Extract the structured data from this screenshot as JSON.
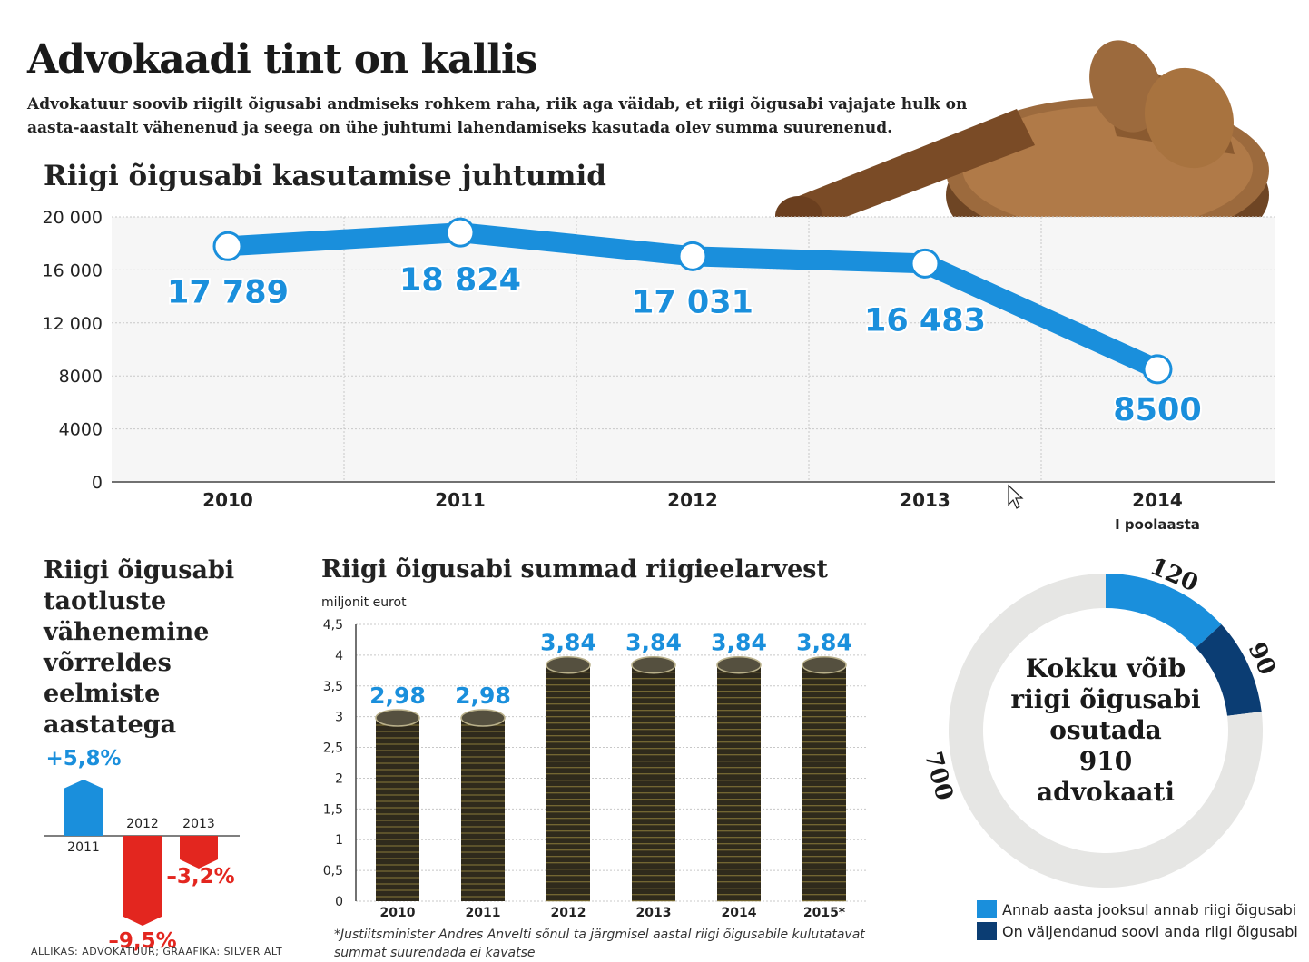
{
  "header": {
    "title": "Advokaadi tint on kallis",
    "subtitle": "Advokatuur soovib riigilt õigusabi andmiseks rohkem raha, riik aga väidab, et riigi õigusabi vajajate hulk on aasta-aastalt vähenenud ja seega on ühe juhtumi lahendamiseks kasutada olev summa suurenenud."
  },
  "colors": {
    "accent_blue": "#1a8fdc",
    "dark_blue": "#0b3d73",
    "red": "#e3261f",
    "grid": "#c8c8c8",
    "donut_gray": "#e6e6e4"
  },
  "chart_data": [
    {
      "type": "line",
      "title": "Riigi õigusabi kasutamise juhtumid",
      "categories": [
        "2010",
        "2011",
        "2012",
        "2013",
        "2014"
      ],
      "category_sublabels": [
        "",
        "",
        "",
        "",
        "I poolaasta"
      ],
      "series": [
        {
          "values": [
            17789,
            18824,
            17031,
            16483,
            8500
          ]
        }
      ],
      "data_labels": [
        "17 789",
        "18 824",
        "17 031",
        "16 483",
        "8500"
      ],
      "yticks": [
        "0",
        "4000",
        "8000",
        "12 000",
        "16 000",
        "20 000"
      ],
      "ylim": [
        0,
        20000
      ],
      "grid": true
    },
    {
      "type": "bar",
      "title": "Riigi õigusabi taotluste vähenemine võrreldes eelmiste aastatega",
      "categories": [
        "2011",
        "2012",
        "2013"
      ],
      "values": [
        5.8,
        -9.5,
        -3.2
      ],
      "data_labels": [
        "+5,8%",
        "–9,5%",
        "–3,2%"
      ]
    },
    {
      "type": "bar",
      "title": "Riigi õigusabi summad riigieelarvest",
      "unit": "miljonit eurot",
      "categories": [
        "2010",
        "2011",
        "2012",
        "2013",
        "2014",
        "2015*"
      ],
      "values": [
        2.98,
        2.98,
        3.84,
        3.84,
        3.84,
        3.84
      ],
      "data_labels": [
        "2,98",
        "2,98",
        "3,84",
        "3,84",
        "3,84",
        "3,84"
      ],
      "yticks": [
        "0",
        "0,5",
        "1",
        "1,5",
        "2",
        "2,5",
        "3",
        "3,5",
        "4",
        "4,5"
      ],
      "ylim": [
        0,
        4.5
      ],
      "grid": true
    },
    {
      "type": "pie",
      "labels": [
        "Annab aasta jooksul annab riigi õigusabi",
        "On väljendanud soovi anda riigi õigusabi",
        ""
      ],
      "values": [
        120,
        90,
        700
      ],
      "value_labels": [
        "120",
        "90",
        "700"
      ]
    }
  ],
  "donut_center": [
    "Kokku võib",
    "riigi õigusabi",
    "osutada",
    "910",
    "advokaati"
  ],
  "footnote": "*Justiitsminister Andres Anvelti sõnul ta järgmisel aastal riigi õigusabile kulutatavat summat suurendada ei kavatse",
  "source": "ALLIKAS: ADVOKATUUR; GRAAFIKA: SILVER ALT"
}
